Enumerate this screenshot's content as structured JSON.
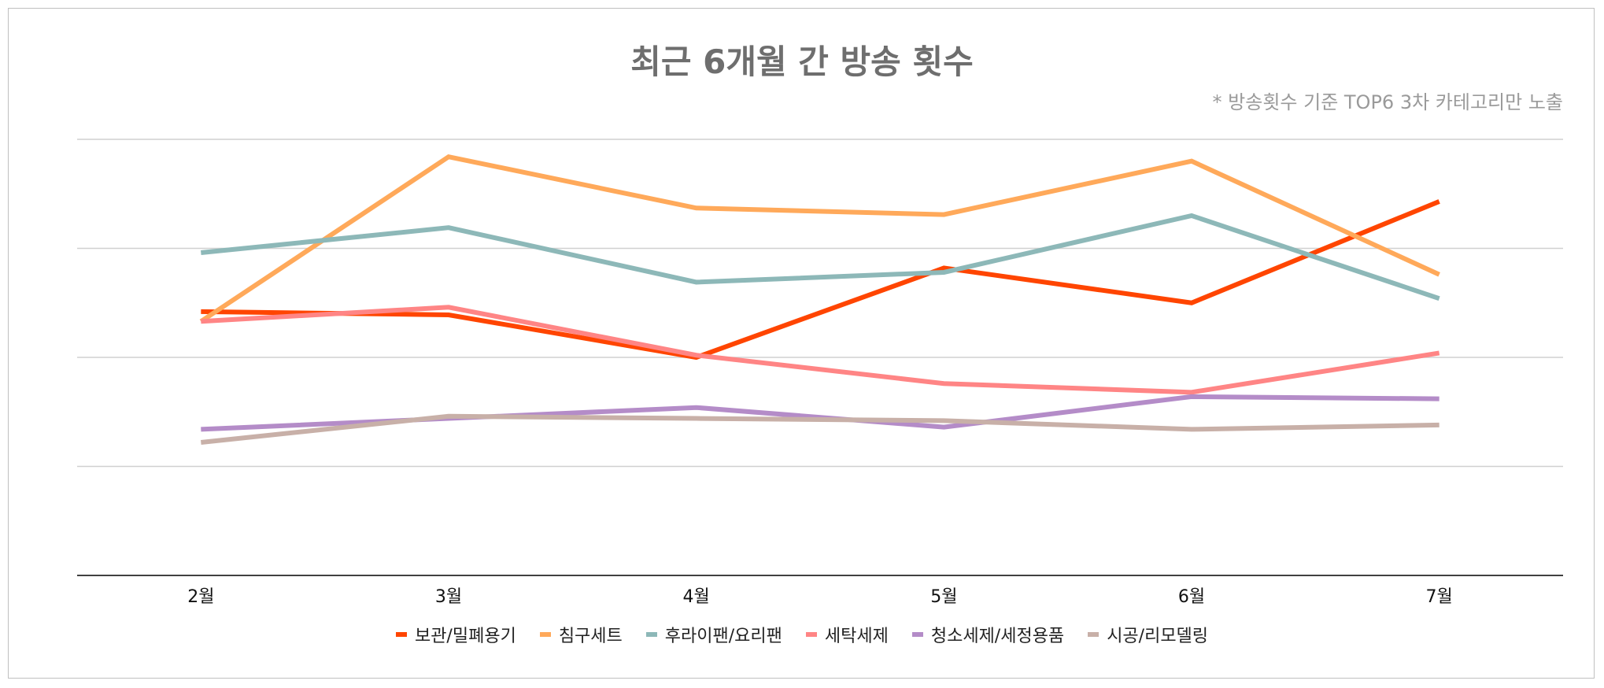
{
  "chart_data": {
    "type": "line",
    "title": "최근 6개월 간 방송 횟수",
    "subtitle": "* 방송횟수 기준 TOP6 3차 카테고리만 노출",
    "xlabel": "",
    "ylabel": "",
    "ylim": [
      0,
      4
    ],
    "y_note": "y axis unlabeled; values in gridline units",
    "grid": true,
    "legend_position": "bottom",
    "categories": [
      "2월",
      "3월",
      "4월",
      "5월",
      "6월",
      "7월"
    ],
    "series": [
      {
        "name": "보관/밀폐용기",
        "color": "#FF4500",
        "values": [
          2.42,
          2.39,
          2.0,
          2.82,
          2.5,
          3.43
        ]
      },
      {
        "name": "침구세트",
        "color": "#FFA95A",
        "values": [
          2.33,
          3.84,
          3.37,
          3.31,
          3.8,
          2.76
        ]
      },
      {
        "name": "후라이팬/요리팬",
        "color": "#8DB8B8",
        "values": [
          2.96,
          3.19,
          2.69,
          2.78,
          3.3,
          2.54
        ]
      },
      {
        "name": "세탁세제",
        "color": "#FF8585",
        "values": [
          2.33,
          2.46,
          2.02,
          1.76,
          1.68,
          2.04
        ]
      },
      {
        "name": "청소세제/세정용품",
        "color": "#B48CC8",
        "values": [
          1.34,
          1.44,
          1.54,
          1.36,
          1.64,
          1.62
        ]
      },
      {
        "name": "시공/리모델링",
        "color": "#C8B0A8",
        "values": [
          1.22,
          1.46,
          1.44,
          1.42,
          1.34,
          1.38
        ]
      }
    ]
  }
}
